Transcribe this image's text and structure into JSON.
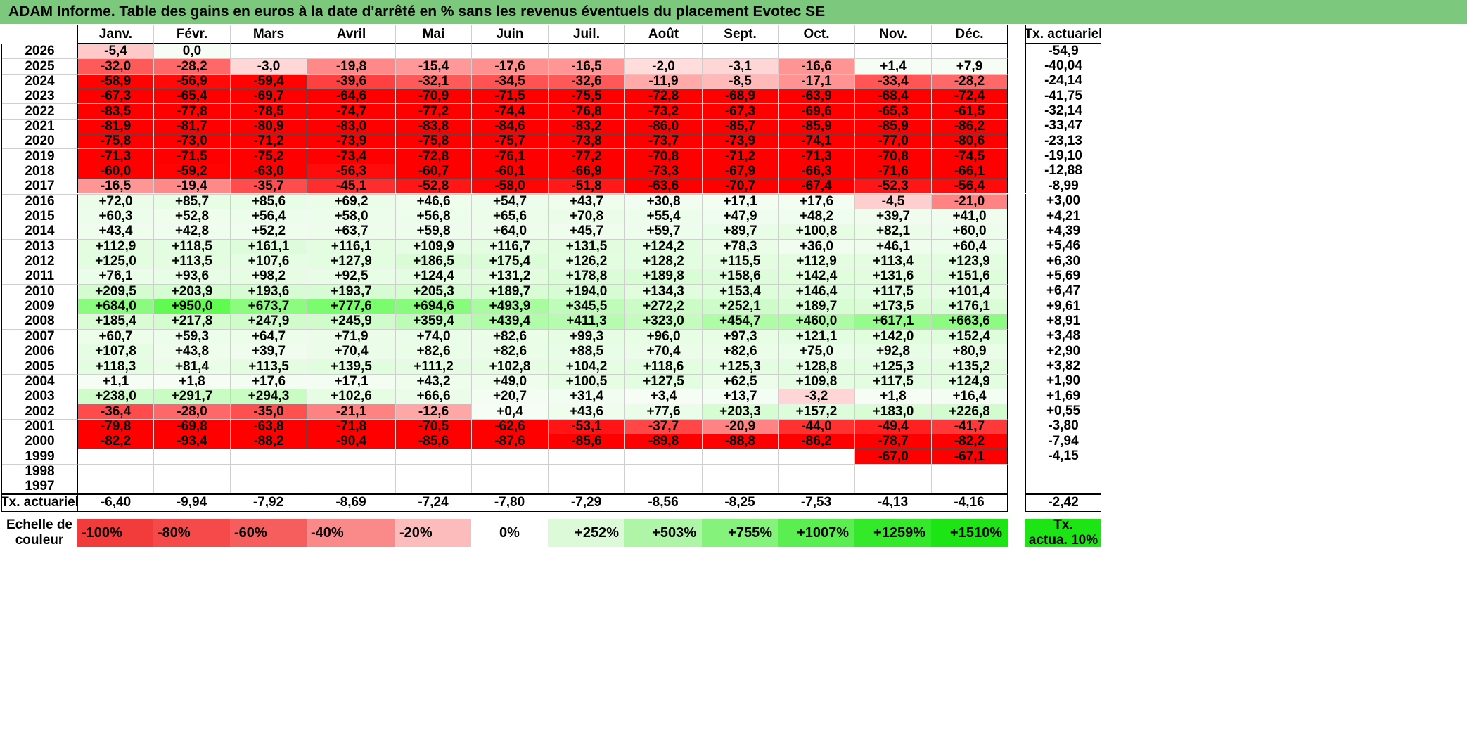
{
  "title": "ADAM Informe. Table des gains en euros à la date d'arrêté en % sans les revenus éventuels du placement Evotec SE",
  "months": [
    "Janv.",
    "Févr.",
    "Mars",
    "Avril",
    "Mai",
    "Juin",
    "Juil.",
    "Août",
    "Sept.",
    "Oct.",
    "Nov.",
    "Déc."
  ],
  "rate_header": "Tx. actuariel",
  "rows": [
    {
      "year": "2026",
      "values": [
        "-5,4",
        "0,0",
        "",
        "",
        "",
        "",
        "",
        "",
        "",
        "",
        "",
        ""
      ],
      "rate": "-54,9"
    },
    {
      "year": "2025",
      "values": [
        "-32,0",
        "-28,2",
        "-3,0",
        "-19,8",
        "-15,4",
        "-17,6",
        "-16,5",
        "-2,0",
        "-3,1",
        "-16,6",
        "+1,4",
        "+7,9"
      ],
      "rate": "-40,04"
    },
    {
      "year": "2024",
      "values": [
        "-58,9",
        "-56,9",
        "-59,4",
        "-39,6",
        "-32,1",
        "-34,5",
        "-32,6",
        "-11,9",
        "-8,5",
        "-17,1",
        "-33,4",
        "-28,2"
      ],
      "rate": "-24,14"
    },
    {
      "year": "2023",
      "values": [
        "-67,3",
        "-65,4",
        "-69,7",
        "-64,6",
        "-70,9",
        "-71,5",
        "-75,5",
        "-72,8",
        "-68,9",
        "-63,9",
        "-68,4",
        "-72,4"
      ],
      "rate": "-41,75"
    },
    {
      "year": "2022",
      "values": [
        "-83,5",
        "-77,8",
        "-78,5",
        "-74,7",
        "-77,2",
        "-74,4",
        "-76,8",
        "-73,2",
        "-67,3",
        "-69,6",
        "-65,3",
        "-61,5"
      ],
      "rate": "-32,14"
    },
    {
      "year": "2021",
      "values": [
        "-81,9",
        "-81,7",
        "-80,9",
        "-83,0",
        "-83,8",
        "-84,6",
        "-83,2",
        "-86,0",
        "-85,7",
        "-85,9",
        "-85,9",
        "-86,2"
      ],
      "rate": "-33,47"
    },
    {
      "year": "2020",
      "values": [
        "-75,8",
        "-73,0",
        "-71,2",
        "-73,9",
        "-75,8",
        "-75,7",
        "-73,8",
        "-73,7",
        "-73,9",
        "-74,1",
        "-77,0",
        "-80,6"
      ],
      "rate": "-23,13"
    },
    {
      "year": "2019",
      "values": [
        "-71,3",
        "-71,5",
        "-75,2",
        "-73,4",
        "-72,8",
        "-76,1",
        "-77,2",
        "-70,8",
        "-71,2",
        "-71,3",
        "-70,8",
        "-74,5"
      ],
      "rate": "-19,10"
    },
    {
      "year": "2018",
      "values": [
        "-60,0",
        "-59,2",
        "-63,0",
        "-56,3",
        "-60,7",
        "-60,1",
        "-66,9",
        "-73,3",
        "-67,9",
        "-66,3",
        "-71,6",
        "-66,1"
      ],
      "rate": "-12,88"
    },
    {
      "year": "2017",
      "values": [
        "-16,5",
        "-19,4",
        "-35,7",
        "-45,1",
        "-52,8",
        "-58,0",
        "-51,8",
        "-63,6",
        "-70,7",
        "-67,4",
        "-52,3",
        "-56,4"
      ],
      "rate": "-8,99"
    },
    {
      "year": "2016",
      "values": [
        "+72,0",
        "+85,7",
        "+85,6",
        "+69,2",
        "+46,6",
        "+54,7",
        "+43,7",
        "+30,8",
        "+17,1",
        "+17,6",
        "-4,5",
        "-21,0"
      ],
      "rate": "+3,00"
    },
    {
      "year": "2015",
      "values": [
        "+60,3",
        "+52,8",
        "+56,4",
        "+58,0",
        "+56,8",
        "+65,6",
        "+70,8",
        "+55,4",
        "+47,9",
        "+48,2",
        "+39,7",
        "+41,0"
      ],
      "rate": "+4,21"
    },
    {
      "year": "2014",
      "values": [
        "+43,4",
        "+42,8",
        "+52,2",
        "+63,7",
        "+59,8",
        "+64,0",
        "+45,7",
        "+59,7",
        "+89,7",
        "+100,8",
        "+82,1",
        "+60,0"
      ],
      "rate": "+4,39"
    },
    {
      "year": "2013",
      "values": [
        "+112,9",
        "+118,5",
        "+161,1",
        "+116,1",
        "+109,9",
        "+116,7",
        "+131,5",
        "+124,2",
        "+78,3",
        "+36,0",
        "+46,1",
        "+60,4"
      ],
      "rate": "+5,46"
    },
    {
      "year": "2012",
      "values": [
        "+125,0",
        "+113,5",
        "+107,6",
        "+127,9",
        "+186,5",
        "+175,4",
        "+126,2",
        "+128,2",
        "+115,5",
        "+112,9",
        "+113,4",
        "+123,9"
      ],
      "rate": "+6,30"
    },
    {
      "year": "2011",
      "values": [
        "+76,1",
        "+93,6",
        "+98,2",
        "+92,5",
        "+124,4",
        "+131,2",
        "+178,8",
        "+189,8",
        "+158,6",
        "+142,4",
        "+131,6",
        "+151,6"
      ],
      "rate": "+5,69"
    },
    {
      "year": "2010",
      "values": [
        "+209,5",
        "+203,9",
        "+193,6",
        "+193,7",
        "+205,3",
        "+189,7",
        "+194,0",
        "+134,3",
        "+153,4",
        "+146,4",
        "+117,5",
        "+101,4"
      ],
      "rate": "+6,47"
    },
    {
      "year": "2009",
      "values": [
        "+684,0",
        "+950,0",
        "+673,7",
        "+777,6",
        "+694,6",
        "+493,9",
        "+345,5",
        "+272,2",
        "+252,1",
        "+189,7",
        "+173,5",
        "+176,1"
      ],
      "rate": "+9,61"
    },
    {
      "year": "2008",
      "values": [
        "+185,4",
        "+217,8",
        "+247,9",
        "+245,9",
        "+359,4",
        "+439,4",
        "+411,3",
        "+323,0",
        "+454,7",
        "+460,0",
        "+617,1",
        "+663,6"
      ],
      "rate": "+8,91"
    },
    {
      "year": "2007",
      "values": [
        "+60,7",
        "+59,3",
        "+64,7",
        "+71,9",
        "+74,0",
        "+82,6",
        "+99,3",
        "+96,0",
        "+97,3",
        "+121,1",
        "+142,0",
        "+152,4"
      ],
      "rate": "+3,48"
    },
    {
      "year": "2006",
      "values": [
        "+107,8",
        "+43,8",
        "+39,7",
        "+70,4",
        "+82,6",
        "+82,6",
        "+88,5",
        "+70,4",
        "+82,6",
        "+75,0",
        "+92,8",
        "+80,9"
      ],
      "rate": "+2,90"
    },
    {
      "year": "2005",
      "values": [
        "+118,3",
        "+81,4",
        "+113,5",
        "+139,5",
        "+111,2",
        "+102,8",
        "+104,2",
        "+118,6",
        "+125,3",
        "+128,8",
        "+125,3",
        "+135,2"
      ],
      "rate": "+3,82"
    },
    {
      "year": "2004",
      "values": [
        "+1,1",
        "+1,8",
        "+17,6",
        "+17,1",
        "+43,2",
        "+49,0",
        "+100,5",
        "+127,5",
        "+62,5",
        "+109,8",
        "+117,5",
        "+124,9"
      ],
      "rate": "+1,90"
    },
    {
      "year": "2003",
      "values": [
        "+238,0",
        "+291,7",
        "+294,3",
        "+102,6",
        "+66,6",
        "+20,7",
        "+31,4",
        "+3,4",
        "+13,7",
        "-3,2",
        "+1,8",
        "+16,4"
      ],
      "rate": "+1,69"
    },
    {
      "year": "2002",
      "values": [
        "-36,4",
        "-28,0",
        "-35,0",
        "-21,1",
        "-12,6",
        "+0,4",
        "+43,6",
        "+77,6",
        "+203,3",
        "+157,2",
        "+183,0",
        "+226,8"
      ],
      "rate": "+0,55"
    },
    {
      "year": "2001",
      "values": [
        "-79,8",
        "-69,8",
        "-63,8",
        "-71,8",
        "-70,5",
        "-62,6",
        "-53,1",
        "-37,7",
        "-20,9",
        "-44,0",
        "-49,4",
        "-41,7"
      ],
      "rate": "-3,80"
    },
    {
      "year": "2000",
      "values": [
        "-82,2",
        "-93,4",
        "-88,2",
        "-90,4",
        "-85,6",
        "-87,6",
        "-85,6",
        "-89,8",
        "-88,8",
        "-86,2",
        "-78,7",
        "-82,2"
      ],
      "rate": "-7,94"
    },
    {
      "year": "1999",
      "values": [
        "",
        "",
        "",
        "",
        "",
        "",
        "",
        "",
        "",
        "",
        "-67,0",
        "-67,1"
      ],
      "rate": "-4,15"
    },
    {
      "year": "1998",
      "values": [
        "",
        "",
        "",
        "",
        "",
        "",
        "",
        "",
        "",
        "",
        "",
        ""
      ],
      "rate": ""
    },
    {
      "year": "1997",
      "values": [
        "",
        "",
        "",
        "",
        "",
        "",
        "",
        "",
        "",
        "",
        "",
        ""
      ],
      "rate": ""
    }
  ],
  "footer": {
    "label": "Tx. actuariel",
    "values": [
      "-6,40",
      "-9,94",
      "-7,92",
      "-8,69",
      "-7,24",
      "-7,80",
      "-7,29",
      "-8,56",
      "-8,25",
      "-7,53",
      "-4,13",
      "-4,16"
    ],
    "rate": "-2,42"
  },
  "scale": {
    "label_line1": "Echelle de",
    "label_line2": "couleur",
    "items": [
      {
        "label": "-100%",
        "color": "#f23c3c"
      },
      {
        "label": "-80%",
        "color": "#f44a4a"
      },
      {
        "label": "-60%",
        "color": "#f65e5e"
      },
      {
        "label": "-40%",
        "color": "#fa8a8a"
      },
      {
        "label": "-20%",
        "color": "#fdbcbc"
      },
      {
        "label": "0%",
        "color": "#ffffff"
      },
      {
        "label": "+252%",
        "color": "#dcfad8"
      },
      {
        "label": "+503%",
        "color": "#aef5a7"
      },
      {
        "label": "+755%",
        "color": "#84f27b"
      },
      {
        "label": "+1007%",
        "color": "#5aee50"
      },
      {
        "label": "+1259%",
        "color": "#33e92a"
      },
      {
        "label": "+1510%",
        "color": "#1de414"
      }
    ],
    "rate_line1": "Tx.",
    "rate_line2": "actua. 10%",
    "rate_color": "#1de414"
  },
  "colors": {
    "title_bar": "#7cc97e",
    "red": "#ff0000",
    "green_max": "#1de414"
  }
}
